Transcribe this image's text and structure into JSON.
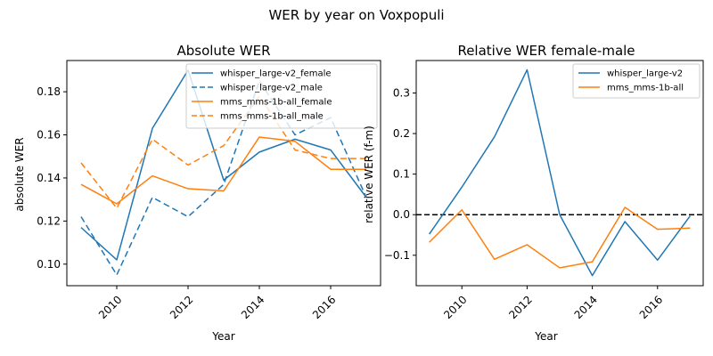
{
  "figure": {
    "suptitle": "WER by year on Voxpopuli"
  },
  "colors": {
    "blue": "#1f77b4",
    "orange": "#ff7f0e"
  },
  "chart_data": [
    {
      "id": "abs",
      "type": "line",
      "title": "Absolute WER",
      "xlabel": "Year",
      "ylabel": "absolute WER",
      "x": [
        2009,
        2010,
        2011,
        2012,
        2013,
        2014,
        2015,
        2016,
        2017
      ],
      "xlim": [
        2008.6,
        2017.4
      ],
      "ylim": [
        0.09,
        0.1945
      ],
      "xticks": [
        2010,
        2012,
        2014,
        2016
      ],
      "yticks": [
        0.1,
        0.12,
        0.14,
        0.16,
        0.18
      ],
      "ytick_labels": [
        "0.10",
        "0.12",
        "0.14",
        "0.16",
        "0.18"
      ],
      "legend_position": "top-right",
      "grid": false,
      "series": [
        {
          "name": "whisper_large-v2_female",
          "color": "#1f77b4",
          "dash": "solid",
          "values": [
            0.117,
            0.102,
            0.163,
            0.19,
            0.139,
            0.152,
            0.158,
            0.153,
            0.131
          ]
        },
        {
          "name": "whisper_large-v2_male",
          "color": "#1f77b4",
          "dash": "dashed",
          "values": [
            0.122,
            0.095,
            0.131,
            0.122,
            0.137,
            0.185,
            0.16,
            0.168,
            0.131
          ]
        },
        {
          "name": "mms_mms-1b-all_female",
          "color": "#ff7f0e",
          "dash": "solid",
          "values": [
            0.137,
            0.128,
            0.141,
            0.135,
            0.134,
            0.159,
            0.157,
            0.144,
            0.144
          ]
        },
        {
          "name": "mms_mms-1b-all_male",
          "color": "#ff7f0e",
          "dash": "dashed",
          "values": [
            0.147,
            0.126,
            0.158,
            0.146,
            0.155,
            0.178,
            0.153,
            0.149,
            0.149
          ]
        }
      ]
    },
    {
      "id": "rel",
      "type": "line",
      "title": "Relative WER female-male",
      "xlabel": "Year",
      "ylabel": "relative WER (f-m)",
      "x": [
        2009,
        2010,
        2011,
        2012,
        2013,
        2014,
        2015,
        2016,
        2017
      ],
      "xlim": [
        2008.6,
        2017.4
      ],
      "ylim": [
        -0.175,
        0.38
      ],
      "xticks": [
        2010,
        2012,
        2014,
        2016
      ],
      "yticks": [
        -0.1,
        0.0,
        0.1,
        0.2,
        0.3
      ],
      "ytick_labels": [
        "−0.1",
        "0.0",
        "0.1",
        "0.2",
        "0.3"
      ],
      "legend_position": "top-right",
      "grid": false,
      "reference_line": {
        "y": 0,
        "color": "#000000",
        "dash": "dashed"
      },
      "series": [
        {
          "name": "whisper_large-v2",
          "color": "#1f77b4",
          "dash": "solid",
          "values": [
            -0.048,
            0.068,
            0.192,
            0.357,
            0.0,
            -0.15,
            -0.017,
            -0.112,
            -0.003
          ]
        },
        {
          "name": "mms_mms-1b-all",
          "color": "#ff7f0e",
          "dash": "solid",
          "values": [
            -0.068,
            0.012,
            -0.11,
            -0.074,
            -0.131,
            -0.116,
            0.018,
            -0.036,
            -0.033
          ]
        }
      ]
    }
  ]
}
